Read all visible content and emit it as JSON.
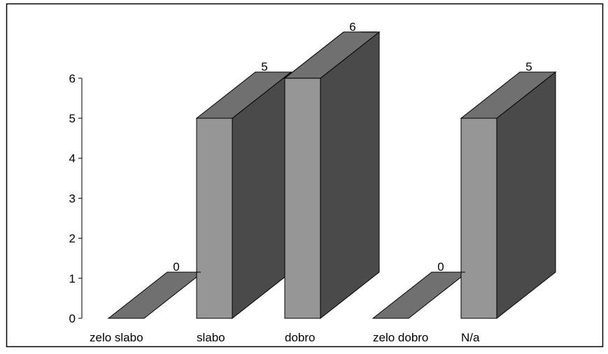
{
  "chart_data": {
    "type": "bar",
    "style": "3d",
    "categories": [
      "zelo slabo",
      "slabo",
      "dobro",
      "zelo dobro",
      "N/a"
    ],
    "values": [
      0,
      5,
      6,
      0,
      5
    ],
    "data_labels": [
      "0",
      "5",
      "6",
      "0",
      "5"
    ],
    "y_ticks": [
      "0",
      "1",
      "2",
      "3",
      "4",
      "5",
      "6"
    ],
    "ylim": [
      0,
      6
    ],
    "grid": false,
    "legend": "none",
    "colors": {
      "front": "#969696",
      "top": "#707070",
      "side": "#4a4a4a",
      "floor": "#707070",
      "outline": "#000000"
    }
  }
}
